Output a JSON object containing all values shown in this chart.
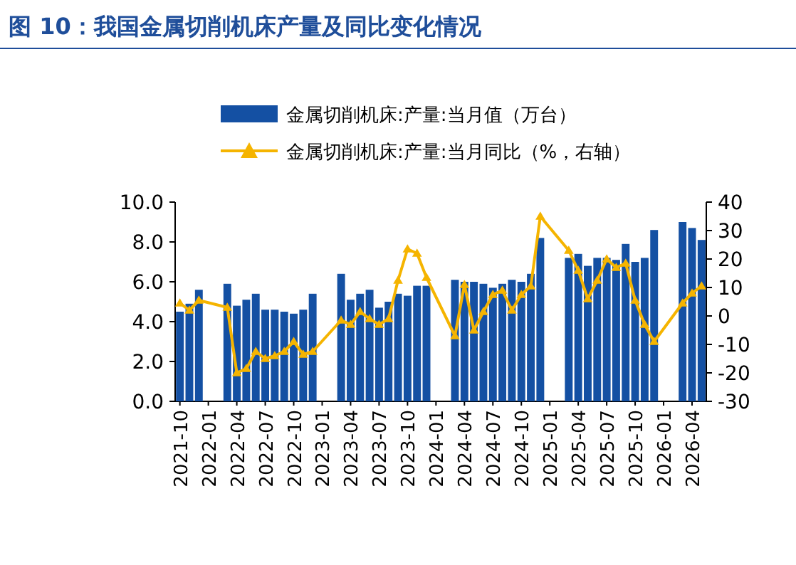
{
  "chart_data": {
    "type": "bar",
    "title": "图 10：我国金属切削机床产量及同比变化情况",
    "categories": [
      "2021-10",
      null,
      null,
      "2022-01",
      null,
      null,
      "2022-04",
      null,
      null,
      "2022-07",
      null,
      null,
      "2022-10",
      null,
      null,
      "2023-01",
      null,
      null,
      "2023-04",
      null,
      null,
      "2023-07",
      null,
      null,
      "2023-10",
      null,
      null,
      "2024-01",
      null,
      null,
      "2024-04",
      null,
      null,
      "2024-07",
      null,
      null,
      "2024-10",
      null,
      null,
      "2025-01",
      null,
      null,
      "2025-04",
      null,
      null,
      "2025-07",
      null,
      null,
      "2025-10",
      null,
      null,
      "2026-01",
      null,
      null,
      "2026-04",
      null
    ],
    "series": [
      {
        "name": "金属切削机床:产量:当月值（万台）",
        "color": "#1450a3",
        "values": [
          4.5,
          4.9,
          5.6,
          null,
          null,
          5.9,
          4.8,
          5.1,
          5.4,
          4.6,
          4.6,
          4.5,
          4.4,
          4.6,
          5.4,
          null,
          null,
          6.4,
          5.1,
          5.4,
          5.6,
          4.7,
          5.0,
          5.4,
          5.3,
          5.8,
          5.8,
          null,
          null,
          6.1,
          6.0,
          6.0,
          5.9,
          5.7,
          5.9,
          6.1,
          6.0,
          6.4,
          8.2,
          null,
          null,
          7.2,
          7.4,
          6.8,
          7.2,
          7.2,
          7.1,
          7.9,
          7.0,
          7.2,
          8.6,
          null,
          null,
          9.0,
          8.7,
          8.1
        ]
      },
      {
        "name": "金属切削机床:产量:当月同比（%，右轴）",
        "type": "line",
        "axis": "y2",
        "color": "#f5b400",
        "marker": "triangle",
        "line_style": "solid",
        "values": [
          4.5,
          2,
          5.5,
          null,
          null,
          3,
          -20,
          -18.5,
          -12.5,
          -15,
          -14,
          -12.5,
          -9,
          -13.5,
          -12.5,
          null,
          null,
          -1.5,
          -3,
          1.5,
          -1,
          -3,
          -1,
          12.5,
          23.5,
          22,
          13.5,
          null,
          null,
          -7,
          11,
          -5,
          1.5,
          7.5,
          9,
          2,
          7.5,
          10.5,
          35,
          null,
          null,
          23,
          16,
          6,
          12.5,
          20,
          17,
          18.5,
          5.5,
          -3,
          -9,
          null,
          null,
          4.5,
          8,
          10.5
        ]
      }
    ],
    "ylim": [
      0,
      10
    ],
    "yticks": [
      {
        "value": 0,
        "label": "0.0"
      },
      {
        "value": 2,
        "label": "2.0"
      },
      {
        "value": 4,
        "label": "4.0"
      },
      {
        "value": 6,
        "label": "6.0"
      },
      {
        "value": 8,
        "label": "8.0"
      },
      {
        "value": 10,
        "label": "10.0"
      }
    ],
    "y2lim": [
      -30,
      40
    ],
    "y2ticks": [
      -30,
      -20,
      -10,
      0,
      10,
      20,
      30,
      40
    ],
    "grid": false,
    "legend": "top"
  }
}
